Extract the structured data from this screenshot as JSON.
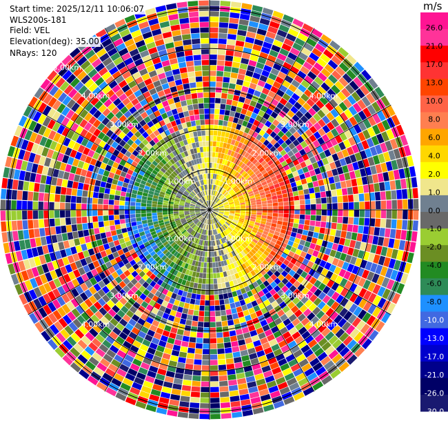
{
  "header": {
    "start_time": "Start time: 2025/12/11 10:06:07",
    "station": "WLS200s-181",
    "field": "Field: VEL",
    "elevation": "Elevation(deg): 35.00",
    "nrays": "NRays: 120"
  },
  "colorbar": {
    "unit": "m/s",
    "ticks": [
      "26.0",
      "21.0",
      "17.0",
      "13.0",
      "10.0",
      "8.0",
      "6.0",
      "4.0",
      "2.0",
      "1.0",
      "0.0",
      "-1.0",
      "-2.0",
      "-4.0",
      "-6.0",
      "-8.0",
      "-10.0",
      "-13.0",
      "-17.0",
      "-21.0",
      "-26.0",
      "-30.0"
    ],
    "colors": [
      "#ff1493",
      "#ff3399",
      "#ff0000",
      "#ff3333",
      "#ff4500",
      "#ff6347",
      "#ff7f50",
      "#ffa500",
      "#ffd700",
      "#ffff00",
      "#f0e68c",
      "#708090",
      "#696969",
      "#9acd32",
      "#6b8e23",
      "#228b22",
      "#2e8b57",
      "#1e90ff",
      "#4169e1",
      "#0000ff",
      "#0000cd",
      "#00008b",
      "#000066",
      "#191970"
    ]
  },
  "chart_data": {
    "type": "heatmap",
    "subtype": "ppi-polar",
    "field": "VEL",
    "unit": "m/s",
    "n_rays": 120,
    "elevation_deg": 35.0,
    "range_rings_km": [
      1,
      2,
      3,
      4,
      5
    ],
    "ring_labels": [
      "1.00km",
      "2.00km",
      "3.00km",
      "4.00km",
      "5.00km"
    ],
    "max_range_km": 5.2,
    "value_range": [
      -30,
      26
    ]
  }
}
